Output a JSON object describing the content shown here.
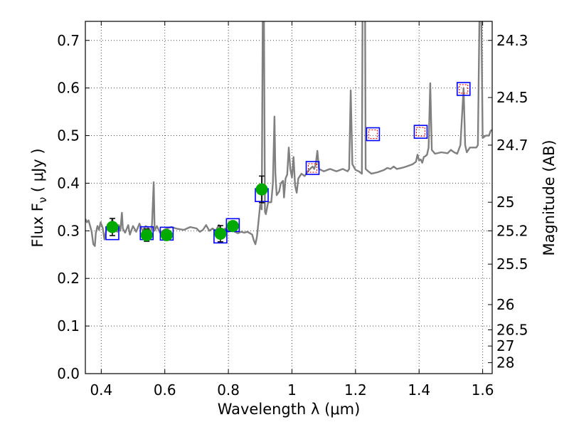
{
  "chart_data": {
    "type": "scatter",
    "xlabel": "Wavelength  λ (μm)",
    "ylabel": "Flux  F",
    "ylabel_subscript": "ν",
    "ylabel_unit": "  ( μJy )",
    "ylabel_right": "Magnitude (AB)",
    "xlim": [
      0.35,
      1.63
    ],
    "ylim": [
      0.0,
      0.74
    ],
    "x_ticks": [
      0.4,
      0.6,
      0.8,
      1.0,
      1.2,
      1.4,
      1.6
    ],
    "x_tick_labels": [
      "0.4",
      "0.6",
      "0.8",
      "1",
      "1.2",
      "1.4",
      "1.6"
    ],
    "y_ticks": [
      0.0,
      0.1,
      0.2,
      0.3,
      0.4,
      0.5,
      0.6,
      0.7
    ],
    "y_tick_labels": [
      "0.0",
      "0.1",
      "0.2",
      "0.3",
      "0.4",
      "0.5",
      "0.6",
      "0.7"
    ],
    "right_ticks": [
      {
        "flux": 0.7,
        "label": "24.3"
      },
      {
        "flux": 0.58,
        "label": "24.5"
      },
      {
        "flux": 0.48,
        "label": "24.7"
      },
      {
        "flux": 0.36,
        "label": "25"
      },
      {
        "flux": 0.3,
        "label": "25.2"
      },
      {
        "flux": 0.23,
        "label": "25.5"
      },
      {
        "flux": 0.145,
        "label": "26"
      },
      {
        "flux": 0.092,
        "label": "26.5"
      },
      {
        "flux": 0.058,
        "label": "27"
      },
      {
        "flux": 0.023,
        "label": "28"
      }
    ],
    "grid": true,
    "series": [
      {
        "name": "observed photometry",
        "marker": "circle",
        "color": "#00aa00",
        "points": [
          {
            "x": 0.435,
            "y": 0.308,
            "err": 0.018
          },
          {
            "x": 0.543,
            "y": 0.291,
            "err": 0.013
          },
          {
            "x": 0.606,
            "y": 0.291,
            "err": 0.01
          },
          {
            "x": 0.775,
            "y": 0.294,
            "err": 0.017
          },
          {
            "x": 0.814,
            "y": 0.31,
            "err": 0.008
          },
          {
            "x": 0.905,
            "y": 0.387,
            "err": 0.028
          }
        ]
      },
      {
        "name": "model band flux",
        "marker": "square",
        "color": "#0000ff",
        "points": [
          {
            "x": 0.435,
            "y": 0.295
          },
          {
            "x": 0.543,
            "y": 0.295
          },
          {
            "x": 0.606,
            "y": 0.294
          },
          {
            "x": 0.775,
            "y": 0.288
          },
          {
            "x": 0.814,
            "y": 0.312
          },
          {
            "x": 0.905,
            "y": 0.375
          },
          {
            "x": 1.065,
            "y": 0.432
          },
          {
            "x": 1.255,
            "y": 0.503
          },
          {
            "x": 1.405,
            "y": 0.508
          },
          {
            "x": 1.54,
            "y": 0.598
          }
        ]
      },
      {
        "name": "predicted NIR flux",
        "marker": "square-dotted",
        "color": "#ff0000",
        "points": [
          {
            "x": 1.065,
            "y": 0.432
          },
          {
            "x": 1.255,
            "y": 0.503
          },
          {
            "x": 1.405,
            "y": 0.508
          },
          {
            "x": 1.54,
            "y": 0.598
          }
        ]
      },
      {
        "name": "model spectrum",
        "marker": "line",
        "color": "#808080",
        "points": [
          [
            0.35,
            0.325
          ],
          [
            0.355,
            0.318
          ],
          [
            0.36,
            0.322
          ],
          [
            0.365,
            0.31
          ],
          [
            0.37,
            0.298
          ],
          [
            0.375,
            0.272
          ],
          [
            0.38,
            0.268
          ],
          [
            0.383,
            0.295
          ],
          [
            0.388,
            0.31
          ],
          [
            0.393,
            0.302
          ],
          [
            0.398,
            0.318
          ],
          [
            0.405,
            0.305
          ],
          [
            0.41,
            0.282
          ],
          [
            0.415,
            0.298
          ],
          [
            0.42,
            0.31
          ],
          [
            0.425,
            0.3
          ],
          [
            0.43,
            0.315
          ],
          [
            0.435,
            0.325
          ],
          [
            0.44,
            0.3
          ],
          [
            0.445,
            0.31
          ],
          [
            0.45,
            0.298
          ],
          [
            0.455,
            0.312
          ],
          [
            0.46,
            0.3
          ],
          [
            0.465,
            0.338
          ],
          [
            0.468,
            0.305
          ],
          [
            0.475,
            0.296
          ],
          [
            0.485,
            0.312
          ],
          [
            0.49,
            0.292
          ],
          [
            0.5,
            0.31
          ],
          [
            0.51,
            0.298
          ],
          [
            0.52,
            0.315
          ],
          [
            0.53,
            0.3
          ],
          [
            0.54,
            0.31
          ],
          [
            0.55,
            0.305
          ],
          [
            0.555,
            0.292
          ],
          [
            0.56,
            0.315
          ],
          [
            0.565,
            0.402
          ],
          [
            0.568,
            0.3
          ],
          [
            0.575,
            0.31
          ],
          [
            0.585,
            0.296
          ],
          [
            0.6,
            0.303
          ],
          [
            0.62,
            0.308
          ],
          [
            0.64,
            0.304
          ],
          [
            0.66,
            0.302
          ],
          [
            0.68,
            0.308
          ],
          [
            0.7,
            0.305
          ],
          [
            0.71,
            0.298
          ],
          [
            0.72,
            0.302
          ],
          [
            0.73,
            0.312
          ],
          [
            0.74,
            0.3
          ],
          [
            0.75,
            0.305
          ],
          [
            0.76,
            0.3
          ],
          [
            0.77,
            0.312
          ],
          [
            0.78,
            0.296
          ],
          [
            0.79,
            0.305
          ],
          [
            0.8,
            0.3
          ],
          [
            0.81,
            0.308
          ],
          [
            0.82,
            0.298
          ],
          [
            0.83,
            0.295
          ],
          [
            0.84,
            0.298
          ],
          [
            0.85,
            0.296
          ],
          [
            0.86,
            0.298
          ],
          [
            0.87,
            0.294
          ],
          [
            0.875,
            0.292
          ],
          [
            0.88,
            0.28
          ],
          [
            0.885,
            0.272
          ],
          [
            0.89,
            0.288
          ],
          [
            0.895,
            0.32
          ],
          [
            0.9,
            0.355
          ],
          [
            0.905,
            0.345
          ],
          [
            0.908,
            0.75
          ],
          [
            0.912,
            0.75
          ],
          [
            0.915,
            0.34
          ],
          [
            0.918,
            0.335
          ],
          [
            0.925,
            0.36
          ],
          [
            0.935,
            0.36
          ],
          [
            0.94,
            0.4
          ],
          [
            0.945,
            0.54
          ],
          [
            0.948,
            0.42
          ],
          [
            0.952,
            0.375
          ],
          [
            0.96,
            0.383
          ],
          [
            0.965,
            0.4
          ],
          [
            0.972,
            0.405
          ],
          [
            0.975,
            0.37
          ],
          [
            0.98,
            0.41
          ],
          [
            0.985,
            0.418
          ],
          [
            0.99,
            0.475
          ],
          [
            0.995,
            0.43
          ],
          [
            1.0,
            0.412
          ],
          [
            1.005,
            0.455
          ],
          [
            1.01,
            0.395
          ],
          [
            1.015,
            0.38
          ],
          [
            1.02,
            0.41
          ],
          [
            1.03,
            0.42
          ],
          [
            1.04,
            0.415
          ],
          [
            1.05,
            0.425
          ],
          [
            1.06,
            0.432
          ],
          [
            1.065,
            0.435
          ],
          [
            1.07,
            0.43
          ],
          [
            1.075,
            0.44
          ],
          [
            1.08,
            0.468
          ],
          [
            1.085,
            0.43
          ],
          [
            1.1,
            0.425
          ],
          [
            1.12,
            0.43
          ],
          [
            1.14,
            0.425
          ],
          [
            1.16,
            0.43
          ],
          [
            1.175,
            0.425
          ],
          [
            1.18,
            0.43
          ],
          [
            1.185,
            0.595
          ],
          [
            1.19,
            0.44
          ],
          [
            1.2,
            0.428
          ],
          [
            1.21,
            0.425
          ],
          [
            1.22,
            0.42
          ],
          [
            1.222,
            0.75
          ],
          [
            1.23,
            0.75
          ],
          [
            1.232,
            0.43
          ],
          [
            1.24,
            0.425
          ],
          [
            1.25,
            0.42
          ],
          [
            1.27,
            0.423
          ],
          [
            1.29,
            0.428
          ],
          [
            1.3,
            0.432
          ],
          [
            1.31,
            0.43
          ],
          [
            1.32,
            0.435
          ],
          [
            1.33,
            0.43
          ],
          [
            1.35,
            0.433
          ],
          [
            1.36,
            0.435
          ],
          [
            1.38,
            0.44
          ],
          [
            1.39,
            0.445
          ],
          [
            1.395,
            0.46
          ],
          [
            1.4,
            0.448
          ],
          [
            1.405,
            0.45
          ],
          [
            1.41,
            0.443
          ],
          [
            1.415,
            0.455
          ],
          [
            1.42,
            0.457
          ],
          [
            1.425,
            0.46
          ],
          [
            1.43,
            0.475
          ],
          [
            1.435,
            0.61
          ],
          [
            1.44,
            0.47
          ],
          [
            1.45,
            0.462
          ],
          [
            1.47,
            0.465
          ],
          [
            1.49,
            0.463
          ],
          [
            1.5,
            0.47
          ],
          [
            1.51,
            0.465
          ],
          [
            1.52,
            0.462
          ],
          [
            1.53,
            0.48
          ],
          [
            1.54,
            0.6
          ],
          [
            1.545,
            0.48
          ],
          [
            1.55,
            0.465
          ],
          [
            1.56,
            0.475
          ],
          [
            1.57,
            0.475
          ],
          [
            1.58,
            0.475
          ],
          [
            1.585,
            0.48
          ],
          [
            1.59,
            0.75
          ],
          [
            1.596,
            0.75
          ],
          [
            1.6,
            0.495
          ],
          [
            1.61,
            0.5
          ],
          [
            1.615,
            0.5
          ],
          [
            1.62,
            0.5
          ],
          [
            1.625,
            0.51
          ],
          [
            1.63,
            0.512
          ]
        ]
      }
    ]
  }
}
